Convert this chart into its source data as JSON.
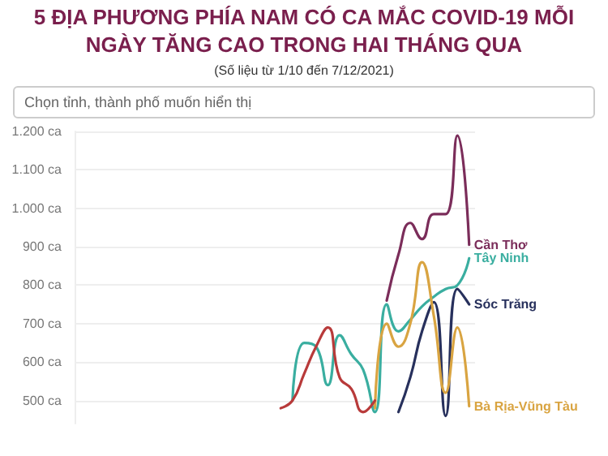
{
  "chart_data": {
    "type": "line",
    "title": "5 ĐỊA PHƯƠNG PHÍA NAM CÓ CA MẮC COVID-19 MỖI NGÀY TĂNG CAO TRONG HAI THÁNG QUA",
    "subtitle": "(Số liệu từ 1/10 đến 7/12/2021)",
    "annotations": [
      "Chọn tỉnh, thành phố muốn hiển thị"
    ],
    "categories": [
      null,
      null,
      null,
      null,
      null,
      null,
      null,
      null,
      null,
      null,
      null,
      null,
      null,
      null,
      null,
      null,
      null,
      null,
      null,
      null,
      null,
      null,
      null,
      null,
      null,
      null,
      null,
      null,
      null,
      null,
      null,
      null,
      null,
      null
    ],
    "series": [
      {
        "name": "Cần Thơ",
        "color": "#7b2d5a",
        "values": [
          null,
          null,
          null,
          null,
          null,
          null,
          null,
          null,
          null,
          null,
          null,
          null,
          null,
          null,
          null,
          null,
          null,
          null,
          null,
          null,
          null,
          null,
          null,
          null,
          null,
          null,
          760,
          880,
          962,
          920,
          985,
          985,
          1189,
          905
        ]
      },
      {
        "name": "Tây Ninh",
        "color": "#3aaea0",
        "values": [
          null,
          null,
          null,
          null,
          null,
          null,
          null,
          null,
          null,
          null,
          null,
          null,
          null,
          null,
          null,
          null,
          null,
          null,
          500,
          650,
          640,
          540,
          670,
          620,
          580,
          470,
          750,
          680,
          710,
          745,
          770,
          790,
          800,
          870
        ]
      },
      {
        "name": "Sóc Trăng",
        "color": "#27305c",
        "values": [
          null,
          null,
          null,
          null,
          null,
          null,
          null,
          null,
          null,
          null,
          null,
          null,
          null,
          null,
          null,
          null,
          null,
          null,
          null,
          null,
          null,
          null,
          null,
          null,
          null,
          null,
          null,
          470,
          560,
          680,
          756,
          460,
          790,
          750
        ]
      },
      {
        "name": "Bà Rịa-Vũng Tàu",
        "color": "#d9a441",
        "values": [
          null,
          null,
          null,
          null,
          null,
          null,
          null,
          null,
          null,
          null,
          null,
          null,
          null,
          null,
          null,
          null,
          null,
          null,
          null,
          null,
          null,
          null,
          null,
          null,
          null,
          480,
          700,
          640,
          700,
          860,
          720,
          520,
          690,
          485
        ]
      },
      {
        "color": "#b83a3a",
        "values": [
          null,
          null,
          null,
          null,
          null,
          null,
          null,
          null,
          null,
          null,
          null,
          null,
          null,
          null,
          null,
          null,
          null,
          480,
          500,
          570,
          640,
          690,
          560,
          530,
          470,
          500,
          null,
          null,
          null,
          null,
          null,
          null,
          null,
          null
        ]
      }
    ],
    "ylim": [
      440,
      1200
    ],
    "yticks": [
      {
        "value": 500,
        "label": "500 ca"
      },
      {
        "value": 600,
        "label": "600 ca"
      },
      {
        "value": 700,
        "label": "700 ca"
      },
      {
        "value": 800,
        "label": "800 ca"
      },
      {
        "value": 900,
        "label": "900 ca"
      },
      {
        "value": 1000,
        "label": "1.000 ca"
      },
      {
        "value": 1100,
        "label": "1.100 ca"
      },
      {
        "value": 1200,
        "label": "1.200 ca"
      }
    ],
    "grid": "y",
    "legend": false,
    "marker": "none",
    "line_style": "solid"
  }
}
